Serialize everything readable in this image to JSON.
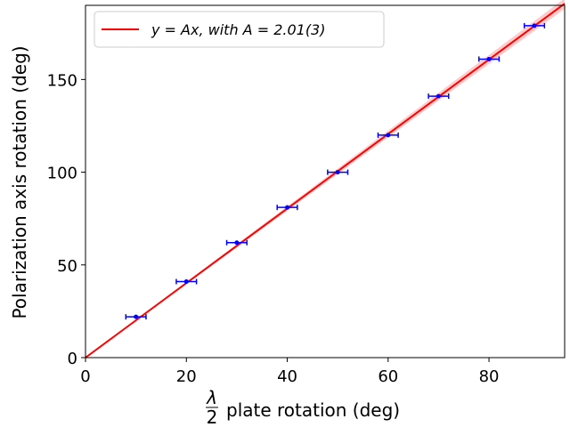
{
  "chart_data": {
    "type": "scatter",
    "xlabel_symbol": "λ",
    "xlabel_denominator": "2",
    "xlabel_text": "plate rotation (deg)",
    "ylabel": "Polarization axis rotation (deg)",
    "xlim": [
      0,
      95
    ],
    "ylim": [
      0,
      190
    ],
    "xticks": [
      0,
      20,
      40,
      60,
      80
    ],
    "yticks": [
      0,
      50,
      100,
      150
    ],
    "grid": false,
    "legend_position": "upper-left",
    "legend": {
      "fit_label_text": "y = Ax,    with A = 2.01(3)"
    },
    "fit": {
      "slope": 2.01,
      "slope_uncertainty": 0.03,
      "color": "#ff0000",
      "band_color": "#ffb3b3"
    },
    "series": [
      {
        "color": "#0000ff",
        "x_error": 2,
        "points": [
          {
            "x": 10,
            "y": 22
          },
          {
            "x": 20,
            "y": 41
          },
          {
            "x": 30,
            "y": 62
          },
          {
            "x": 40,
            "y": 81
          },
          {
            "x": 50,
            "y": 100
          },
          {
            "x": 60,
            "y": 120
          },
          {
            "x": 70,
            "y": 141
          },
          {
            "x": 80,
            "y": 161
          },
          {
            "x": 89,
            "y": 179
          }
        ]
      }
    ]
  }
}
